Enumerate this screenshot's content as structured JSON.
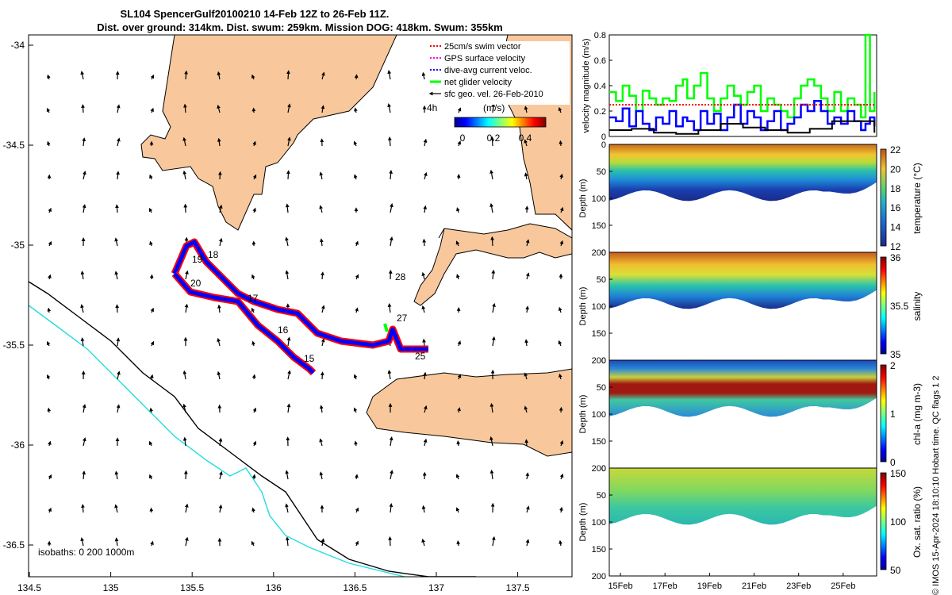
{
  "header": {
    "title_line1": "SL104 SpencerGulf20100210 14-Feb 12Z to 26-Feb 11Z.",
    "title_line2": "Dist. over ground: 314km. Dist. swum: 259km. Mission DOG: 418km. Swum: 355km"
  },
  "colors": {
    "land": "#f8c89c",
    "swim_vector": "#ff0000",
    "gps_velocity": "#ff00ff",
    "dive_avg": "#0000ff",
    "net_velocity": "#00ff00",
    "sfc_geo": "#000000",
    "isobath_200": "#000000",
    "isobath_1000": "#22dddd"
  },
  "map": {
    "xticks": [
      "134.5",
      "135",
      "135.5",
      "136",
      "136.5",
      "137",
      "137.5"
    ],
    "yticks": [
      "-34",
      "-34.5",
      "-35",
      "-35.5",
      "-36",
      "-36.5"
    ],
    "legend": [
      {
        "label": "25cm/s swim vector",
        "color_key": "swim_vector",
        "style": "dot"
      },
      {
        "label": "GPS surface velocity",
        "color_key": "gps_velocity",
        "style": "dot"
      },
      {
        "label": "dive-avg current veloc.",
        "color_key": "dive_avg",
        "style": "dot"
      },
      {
        "label": "net glider velocity",
        "color_key": "net_velocity",
        "style": "line"
      },
      {
        "label": "sfc geo. vel. 26-Feb-2010",
        "color_key": "sfc_geo",
        "style": "arrow"
      }
    ],
    "time_label": "4h",
    "colorbar_label": "(m/s)",
    "colorbar_ticks": [
      "0",
      "0.2",
      "0.4"
    ],
    "isobaths_label": "isobaths: 0   200  1000m",
    "day_labels": [
      "15",
      "16",
      "17",
      "18",
      "19",
      "20",
      "25",
      "27",
      "28"
    ]
  },
  "chart_data": [
    {
      "type": "line",
      "title": "",
      "ylabel": "velocity magnitude (m/s)",
      "ylim": [
        0,
        0.8
      ],
      "yticks": [
        "0",
        "0.2",
        "0.4",
        "0.6",
        "0.8"
      ],
      "x_days": [
        14.5,
        26.5
      ],
      "series": [
        {
          "color_key": "net_velocity",
          "x": [
            14.5,
            14.8,
            15.1,
            15.4,
            15.7,
            16.0,
            16.3,
            16.6,
            16.9,
            17.2,
            17.5,
            17.8,
            18.0,
            18.3,
            18.6,
            18.9,
            19.2,
            19.5,
            19.8,
            20.1,
            20.4,
            20.7,
            21.0,
            21.3,
            21.6,
            21.9,
            22.2,
            22.5,
            22.8,
            23.1,
            23.4,
            23.7,
            24.0,
            24.3,
            24.6,
            24.9,
            25.2,
            25.5,
            25.8,
            26.0,
            26.2,
            26.4
          ],
          "values": [
            0.35,
            0.28,
            0.4,
            0.32,
            0.2,
            0.36,
            0.3,
            0.25,
            0.3,
            0.28,
            0.4,
            0.45,
            0.3,
            0.4,
            0.5,
            0.3,
            0.2,
            0.3,
            0.4,
            0.32,
            0.25,
            0.35,
            0.4,
            0.2,
            0.3,
            0.25,
            0.2,
            0.15,
            0.3,
            0.4,
            0.45,
            0.4,
            0.3,
            0.2,
            0.35,
            0.2,
            0.3,
            0.25,
            0.15,
            0.8,
            0.2,
            0.35
          ]
        },
        {
          "color_key": "dive_avg",
          "x": [
            14.5,
            14.8,
            15.1,
            15.4,
            15.7,
            16.0,
            16.3,
            16.6,
            16.9,
            17.2,
            17.5,
            17.8,
            18.0,
            18.3,
            18.6,
            18.9,
            19.2,
            19.5,
            19.8,
            20.1,
            20.4,
            20.7,
            21.0,
            21.3,
            21.6,
            21.9,
            22.2,
            22.5,
            22.8,
            23.1,
            23.4,
            23.7,
            24.0,
            24.3,
            24.6,
            24.9,
            25.2,
            25.5,
            25.8,
            26.0,
            26.2,
            26.4
          ],
          "values": [
            0.15,
            0.12,
            0.22,
            0.08,
            0.2,
            0.1,
            0.05,
            0.15,
            0.1,
            0.2,
            0.08,
            0.15,
            0.12,
            0.05,
            0.2,
            0.1,
            0.18,
            0.05,
            0.15,
            0.25,
            0.1,
            0.2,
            0.15,
            0.05,
            0.12,
            0.2,
            0.05,
            0.1,
            0.15,
            0.25,
            0.2,
            0.28,
            0.2,
            0.1,
            0.15,
            0.1,
            0.2,
            0.12,
            0.05,
            0.1,
            0.15,
            0.08
          ]
        },
        {
          "color_key": "sfc_geo",
          "x": [
            14.5,
            15.5,
            16.5,
            17.5,
            18.5,
            19.5,
            20.5,
            21.5,
            22.5,
            23.5,
            24.5,
            25.5,
            26.4
          ],
          "values": [
            0.05,
            0.06,
            0.03,
            0.02,
            0.05,
            0.1,
            0.07,
            0.05,
            0.03,
            0.06,
            0.12,
            0.12,
            0.03
          ]
        },
        {
          "color_key": "swim_vector",
          "x": [
            14.5,
            26.4
          ],
          "values": [
            0.25,
            0.25
          ]
        }
      ]
    },
    {
      "type": "heatmap",
      "ylabel": "Depth (m)",
      "colorbar_label": "temperature (°C)",
      "colorbar_ticks": [
        "12",
        "14",
        "16",
        "18",
        "20",
        "22"
      ],
      "yticks": [
        "0",
        "50",
        "100",
        "150",
        "200"
      ],
      "ylim": [
        200,
        0
      ]
    },
    {
      "type": "heatmap",
      "ylabel": "Depth (m)",
      "colorbar_label": "salinity",
      "colorbar_ticks": [
        "35",
        "35.5",
        "36"
      ],
      "yticks": [
        "0",
        "50",
        "100",
        "150",
        "200"
      ],
      "ylim": [
        200,
        0
      ]
    },
    {
      "type": "heatmap",
      "ylabel": "Depth (m)",
      "colorbar_label": "chl-a (mg m-3)",
      "colorbar_ticks": [
        "0",
        "1",
        "2"
      ],
      "yticks": [
        "0",
        "50",
        "100",
        "150",
        "200"
      ],
      "ylim": [
        200,
        0
      ]
    },
    {
      "type": "heatmap",
      "ylabel": "Depth (m)",
      "colorbar_label": "Ox. sat. ratio (%)",
      "colorbar_ticks": [
        "50",
        "100",
        "150"
      ],
      "yticks": [
        "0",
        "50",
        "100",
        "150",
        "200"
      ],
      "ylim": [
        200,
        0
      ]
    }
  ],
  "time_axis": {
    "ticks": [
      "15Feb",
      "17Feb",
      "19Feb",
      "21Feb",
      "23Feb",
      "25Feb"
    ]
  },
  "side_note": "© IMOS 15-Apr-2024 18:10:10 Hobart time. QC flags 1  2"
}
